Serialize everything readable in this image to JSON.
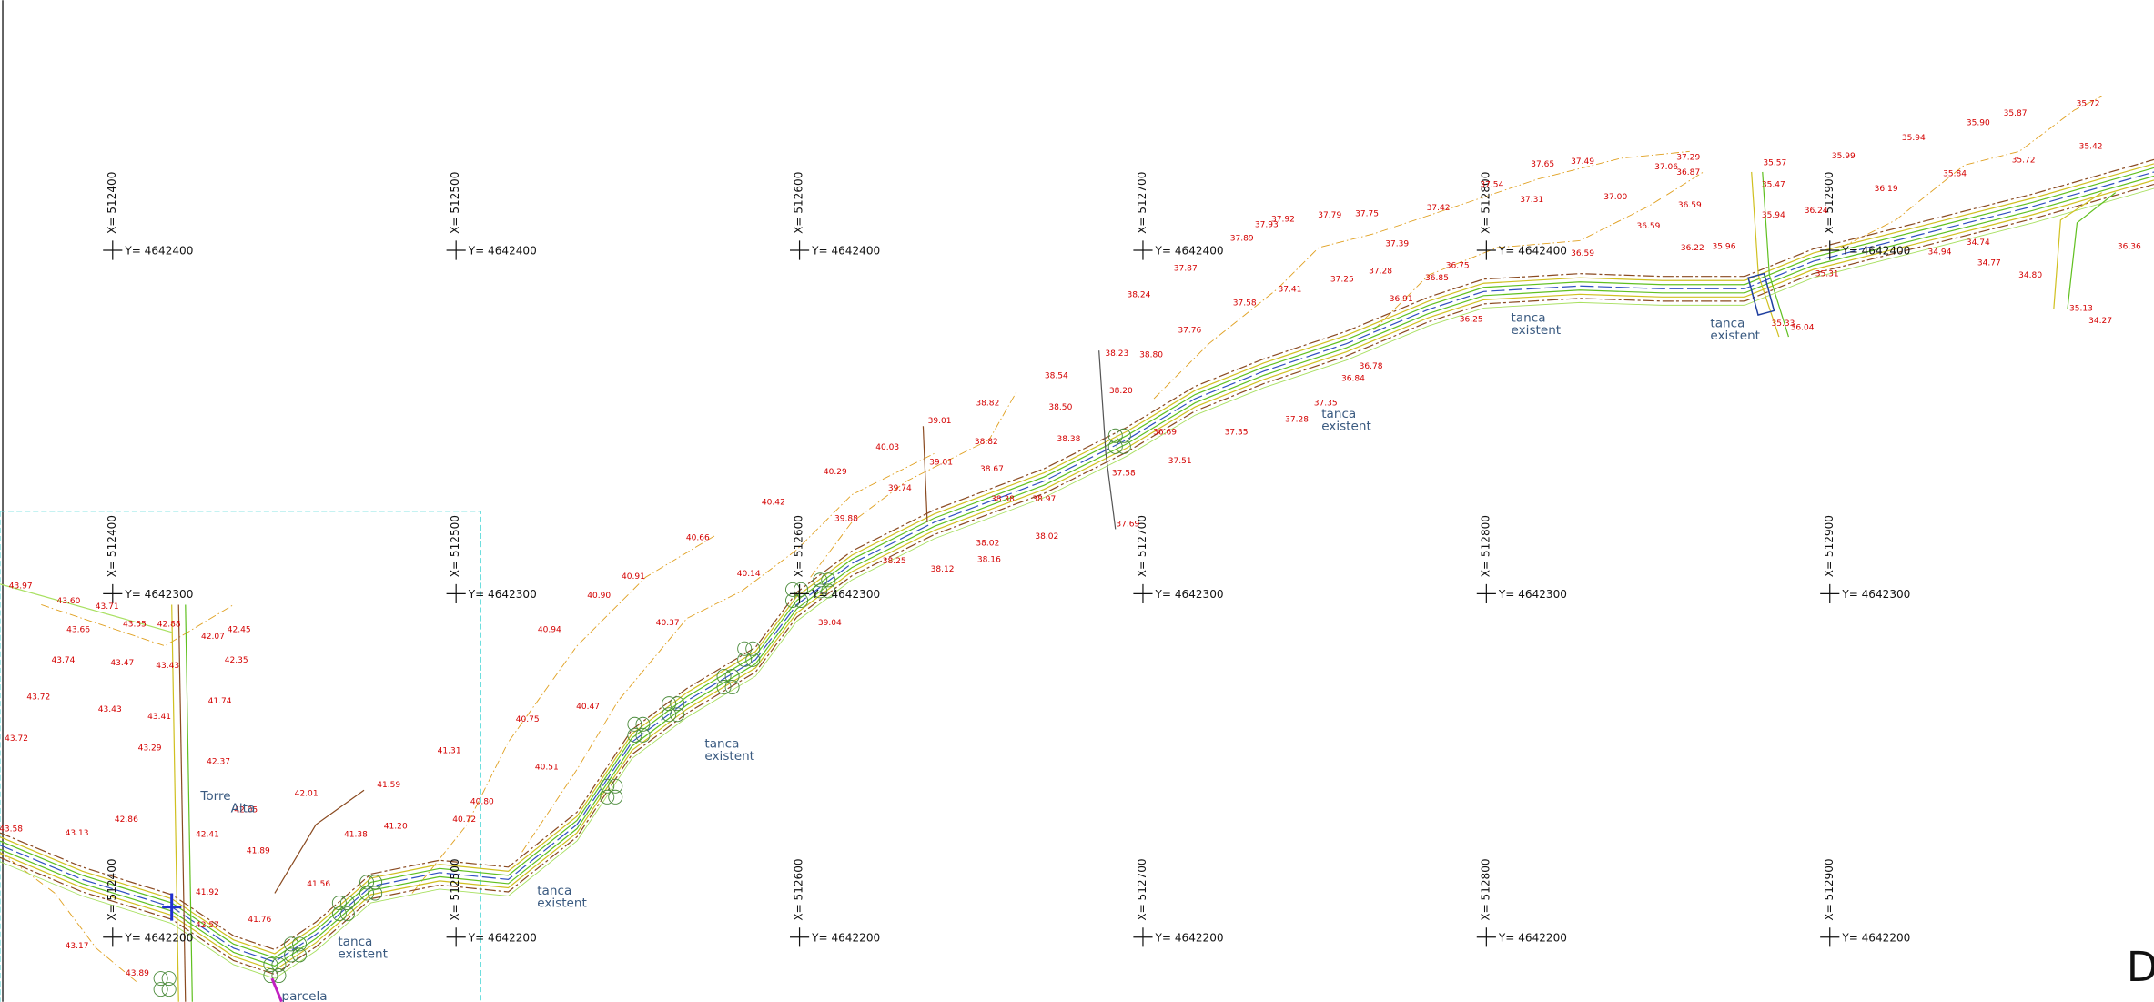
{
  "grid": {
    "x_labels": [
      "X= 512400",
      "X= 512500",
      "X= 512600",
      "X= 512700",
      "X= 512800",
      "X= 512900"
    ],
    "y_labels": [
      "Y= 4642400",
      "Y= 4642300",
      "Y= 4642200"
    ]
  },
  "spot_heights": [
    "35.72",
    "35.87",
    "35.90",
    "35.94",
    "35.99",
    "35.42",
    "35.72",
    "35.84",
    "36.19",
    "35.57",
    "37.29",
    "37.06",
    "37.49",
    "37.65",
    "36.87",
    "37.00",
    "37.31",
    "37.54",
    "37.42",
    "37.75",
    "37.79",
    "37.92",
    "37.93",
    "37.89",
    "37.39",
    "36.59",
    "36.59",
    "36.59",
    "36.22",
    "35.96",
    "37.28",
    "37.25",
    "37.41",
    "37.58",
    "37.87",
    "38.24",
    "37.76",
    "38.23",
    "38.80",
    "38.54",
    "38.50",
    "38.20",
    "38.82",
    "39.01",
    "38.82",
    "40.03",
    "39.01",
    "38.67",
    "38.38",
    "40.29",
    "39.74",
    "40.42",
    "38.38",
    "38.97",
    "39.88",
    "40.66",
    "38.02",
    "38.02",
    "38.16",
    "38.12",
    "38.25",
    "40.14",
    "40.91",
    "40.90",
    "39.04",
    "40.94",
    "40.37",
    "40.47",
    "40.75",
    "40.51",
    "41.31",
    "40.80",
    "40.72",
    "41.59",
    "41.38",
    "41.20",
    "42.01",
    "41.89",
    "41.76",
    "41.56",
    "37.35",
    "37.51",
    "37.69",
    "36.69",
    "37.58",
    "36.91",
    "36.85",
    "36.75",
    "36.25",
    "36.78",
    "36.84",
    "37.35",
    "37.28",
    "35.31",
    "34.94",
    "34.74",
    "34.77",
    "34.80",
    "35.13",
    "34.27",
    "36.36",
    "36.04",
    "35.33",
    "35.94",
    "35.47",
    "36.24",
    "43.97",
    "43.60",
    "43.71",
    "43.66",
    "43.55",
    "42.88",
    "42.45",
    "42.07",
    "43.74",
    "43.47",
    "43.43",
    "42.35",
    "43.72",
    "43.43",
    "43.41",
    "41.74",
    "43.72",
    "43.29",
    "42.37",
    "43.58",
    "43.13",
    "42.86",
    "42.41",
    "42.05",
    "43.17",
    "43.89",
    "42.57",
    "41.92"
  ],
  "notes": [
    [
      "tanca",
      "existent"
    ],
    [
      "tanca",
      "existent"
    ],
    [
      "tanca",
      "existent"
    ],
    [
      "tanca",
      "existent"
    ],
    [
      "tanca",
      "existent"
    ],
    [
      "tanca",
      "existent"
    ]
  ],
  "place_labels": [
    "Torre",
    "Alta",
    "parcela"
  ],
  "sheet_letter": "D"
}
